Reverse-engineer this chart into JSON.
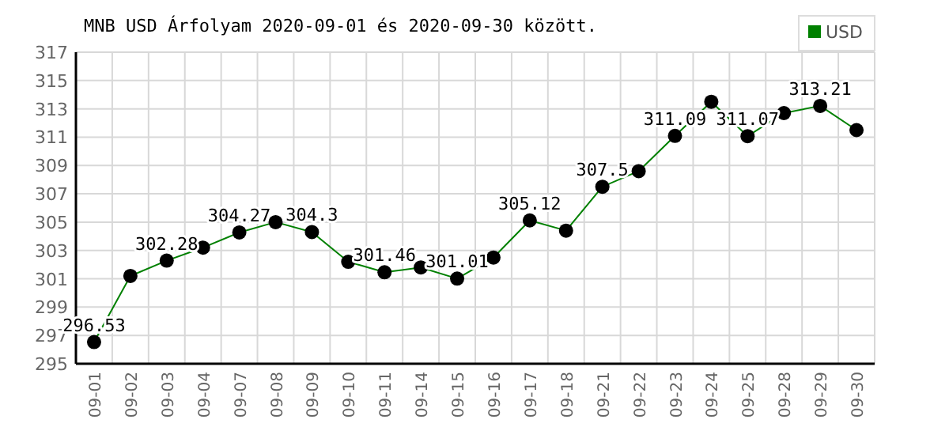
{
  "chart_data": {
    "type": "line",
    "title": "MNB USD Árfolyam 2020-09-01 és 2020-09-30 között.",
    "categories": [
      "09-01",
      "09-02",
      "09-03",
      "09-04",
      "09-07",
      "09-08",
      "09-09",
      "09-10",
      "09-11",
      "09-14",
      "09-15",
      "09-16",
      "09-17",
      "09-18",
      "09-21",
      "09-22",
      "09-23",
      "09-24",
      "09-25",
      "09-28",
      "09-29",
      "09-30"
    ],
    "series": [
      {
        "name": "USD",
        "color": "#008000",
        "values": [
          296.53,
          301.2,
          302.28,
          303.2,
          304.27,
          305.0,
          304.3,
          302.2,
          301.46,
          301.8,
          301.01,
          302.5,
          305.12,
          304.4,
          307.5,
          308.6,
          311.09,
          313.5,
          311.07,
          312.7,
          313.21,
          311.5
        ],
        "value_labels": [
          "296.53",
          null,
          "302.28",
          null,
          "304.27",
          null,
          "304.3",
          null,
          "301.46",
          null,
          "301.01",
          null,
          "305.12",
          null,
          "307.5",
          null,
          "311.09",
          null,
          "311.07",
          null,
          "313.21",
          null
        ]
      }
    ],
    "ylim": [
      295,
      317
    ],
    "yticks": [
      295,
      297,
      299,
      301,
      303,
      305,
      307,
      309,
      311,
      313,
      315,
      317
    ],
    "grid": true,
    "legend": "top right",
    "marker": "circle",
    "line_style": "solid"
  }
}
